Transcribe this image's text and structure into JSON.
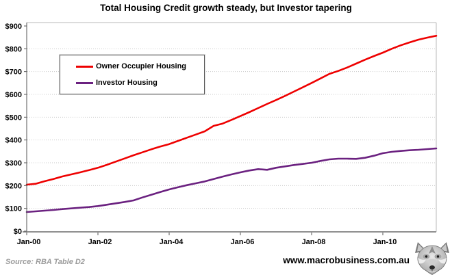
{
  "chart_data": {
    "type": "line",
    "title": "Total Housing Credit growth steady, but Investor tapering",
    "xlabel": "",
    "ylabel": "",
    "ylim": [
      0,
      900
    ],
    "y_tick_step": 100,
    "y_tick_prefix": "$",
    "y_tick_labels": [
      "$0",
      "$100",
      "$200",
      "$300",
      "$400",
      "$500",
      "$600",
      "$700",
      "$800",
      "$900"
    ],
    "x_tick_labels": [
      "Jan-00",
      "Jan-02",
      "Jan-04",
      "Jan-06",
      "Jan-08",
      "Jan-10"
    ],
    "x_tick_step_years": 2,
    "x_start": "Jan-2000",
    "x_end": "Jul-2011",
    "x_span_years": 11.5,
    "x_step_years": 0.25,
    "grid": "horizontal dotted",
    "legend_position": "upper-left inside plot",
    "series": [
      {
        "id": "owner-occupier",
        "name": "Owner Occupier Housing",
        "color": "#ee0000",
        "values": [
          204,
          208,
          219,
          229,
          240,
          249,
          258,
          268,
          278,
          291,
          305,
          319,
          333,
          346,
          359,
          371,
          382,
          396,
          410,
          424,
          438,
          462,
          472,
          488,
          505,
          522,
          540,
          558,
          575,
          593,
          612,
          631,
          650,
          670,
          690,
          703,
          718,
          735,
          752,
          768,
          783,
          800,
          815,
          828,
          840,
          849,
          857
        ]
      },
      {
        "id": "investor",
        "name": "Investor Housing",
        "color": "#6b2180",
        "values": [
          84,
          87,
          90,
          93,
          97,
          100,
          103,
          106,
          110,
          116,
          122,
          128,
          135,
          148,
          160,
          172,
          183,
          193,
          202,
          210,
          218,
          229,
          239,
          249,
          258,
          266,
          272,
          269,
          278,
          284,
          290,
          295,
          300,
          308,
          315,
          318,
          318,
          317,
          322,
          331,
          342,
          348,
          352,
          355,
          357,
          360,
          363
        ]
      }
    ]
  },
  "footer": {
    "source": "Source: RBA Table D2",
    "url": "www.macrobusiness.com.au",
    "logo_icon": "wolf-head-logo"
  },
  "colors": {
    "background": "#ffffff",
    "gridline": "#c9c9c9",
    "axis": "#555555",
    "bottom_axis": "#8f8f8f",
    "frame": "#b8b8b8",
    "source_text": "#9b9b9b",
    "owner_occupier_line": "#ee0000",
    "investor_line": "#6b2180"
  }
}
